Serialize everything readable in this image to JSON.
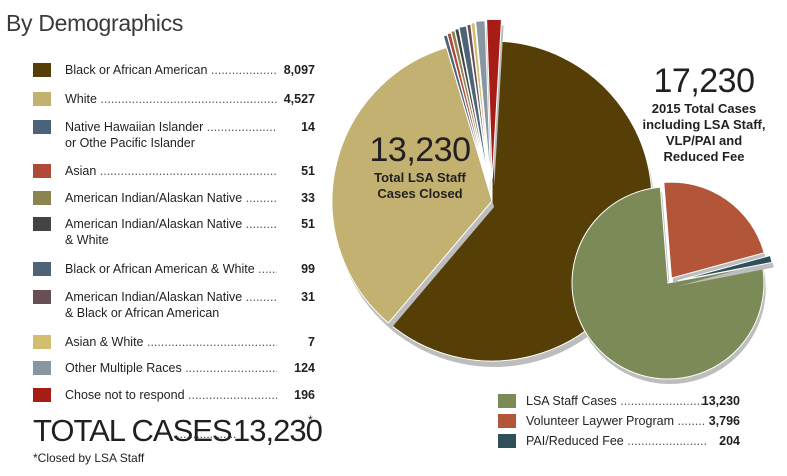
{
  "heading": "By Demographics",
  "total_label": "TOTAL CASES",
  "total_value": "13,230",
  "total_star": "*",
  "footnote": "*Closed by LSA Staff",
  "main_pie_number": "13,230",
  "main_pie_caption": [
    "Total LSA Staff",
    "Cases Closed"
  ],
  "second_pie_number": "17,230",
  "second_pie_caption": [
    "2015 Total Cases",
    "including LSA Staff,",
    "VLP/PAI and",
    "Reduced Fee"
  ],
  "chart_data": [
    {
      "type": "pie",
      "title": "By Demographics",
      "series": [
        {
          "name": "Black or African American",
          "value": 8097,
          "label": "8,097",
          "color": "#553f07"
        },
        {
          "name": "White",
          "value": 4527,
          "label": "4,527",
          "color": "#c2b170"
        },
        {
          "name": "Native Hawaiian Islander or Othe Pacific Islander",
          "line1": "Native Hawaiian Islander",
          "line2": "or Othe Pacific Islander",
          "value": 14,
          "label": "14",
          "color": "#4a6378"
        },
        {
          "name": "Asian",
          "value": 51,
          "label": "51",
          "color": "#b04a38"
        },
        {
          "name": "American Indian/Alaskan Native",
          "value": 33,
          "label": "33",
          "color": "#8c8450"
        },
        {
          "name": "American Indian/Alaskan Native & White",
          "line1": "American Indian/Alaskan Native",
          "line2": "& White",
          "value": 51,
          "label": "51",
          "color": "#444444"
        },
        {
          "name": "Black or African American & White",
          "value": 99,
          "label": "99",
          "color": "#4c6378"
        },
        {
          "name": "American Indian/Alaskan Native & Black or African American",
          "line1": "American Indian/Alaskan Native",
          "line2": "& Black or African American",
          "value": 31,
          "label": "31",
          "color": "#6a4e55"
        },
        {
          "name": "Asian & White",
          "value": 7,
          "label": "7",
          "color": "#d3bd6e"
        },
        {
          "name": "Other Multiple Races",
          "value": 124,
          "label": "124",
          "color": "#8796a0"
        },
        {
          "name": "Chose not to respond",
          "value": 196,
          "label": "196",
          "color": "#a81c16"
        }
      ]
    },
    {
      "type": "pie",
      "series": [
        {
          "name": "LSA Staff Cases",
          "value": 13230,
          "label": "13,230",
          "color": "#7c8a58"
        },
        {
          "name": "Volunteer Laywer Program",
          "value": 3796,
          "label": "3,796",
          "color": "#b25538"
        },
        {
          "name": "PAI/Reduced Fee",
          "value": 204,
          "label": "204",
          "color": "#2f4f59"
        }
      ]
    }
  ]
}
